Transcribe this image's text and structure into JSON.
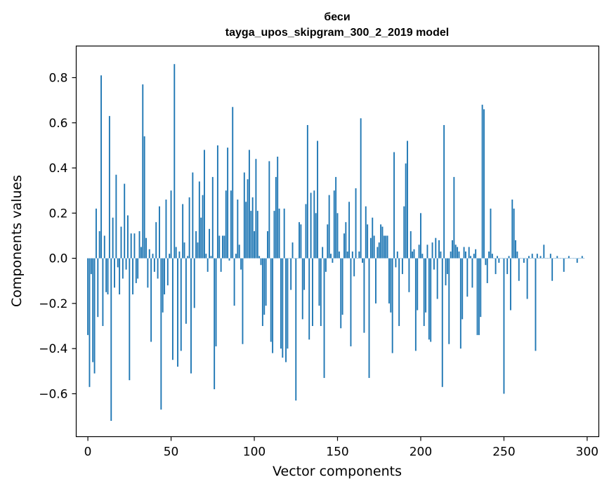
{
  "colors": {
    "bar": "#1f77b4",
    "axis": "#000000",
    "background": "#ffffff"
  },
  "chart_data": {
    "type": "bar",
    "title": "беси",
    "subtitle": "tayga_upos_skipgram_300_2_2019 model",
    "xlabel": "Vector components",
    "ylabel": "Components values",
    "xlim": [
      -7,
      307
    ],
    "ylim": [
      -0.79,
      0.94
    ],
    "xticks": [
      0,
      50,
      100,
      150,
      200,
      250,
      300
    ],
    "yticks": [
      -0.6,
      -0.4,
      -0.2,
      0.0,
      0.2,
      0.4,
      0.6,
      0.8
    ],
    "ytick_labels": [
      "−0.6",
      "−0.4",
      "−0.2",
      "0.0",
      "0.2",
      "0.4",
      "0.6",
      "0.8"
    ],
    "grid": false,
    "values": [
      -0.34,
      -0.57,
      -0.07,
      -0.46,
      -0.51,
      0.22,
      -0.26,
      0.12,
      0.81,
      -0.3,
      0.1,
      -0.15,
      -0.16,
      0.63,
      -0.72,
      0.18,
      -0.13,
      0.37,
      -0.04,
      -0.16,
      0.14,
      -0.09,
      0.33,
      -0.05,
      0.19,
      -0.54,
      0.11,
      -0.16,
      0.11,
      -0.11,
      -0.09,
      0.12,
      0.05,
      0.77,
      0.54,
      0.09,
      -0.13,
      0.04,
      -0.37,
      0.02,
      -0.06,
      0.16,
      -0.09,
      0.23,
      -0.67,
      -0.24,
      -0.16,
      0.26,
      -0.12,
      0.02,
      0.3,
      -0.45,
      0.86,
      0.05,
      -0.48,
      0.03,
      -0.41,
      0.24,
      0.07,
      -0.29,
      0.01,
      0.27,
      -0.51,
      0.38,
      -0.22,
      0.12,
      0.07,
      0.34,
      0.18,
      0.28,
      0.48,
      0.02,
      -0.06,
      0.13,
      0.01,
      0.36,
      -0.58,
      -0.39,
      0.5,
      0.1,
      -0.06,
      0.1,
      0.1,
      0.3,
      0.49,
      -0.01,
      0.3,
      0.67,
      -0.21,
      0.02,
      0.26,
      0.06,
      -0.05,
      -0.38,
      0.38,
      0.25,
      0.35,
      0.48,
      0.21,
      0.27,
      0.12,
      0.44,
      0.21,
      0.01,
      -0.03,
      -0.3,
      -0.25,
      -0.21,
      0.12,
      0.43,
      -0.37,
      -0.42,
      0.21,
      0.36,
      0.45,
      0.22,
      -0.4,
      -0.44,
      0.22,
      -0.46,
      -0.4,
      0.0,
      -0.14,
      0.07,
      0.0,
      -0.63,
      0.0,
      0.16,
      0.15,
      -0.27,
      -0.14,
      0.24,
      0.59,
      -0.36,
      0.29,
      -0.3,
      0.3,
      0.2,
      0.52,
      -0.21,
      -0.3,
      0.05,
      -0.53,
      -0.06,
      0.15,
      0.28,
      0.02,
      -0.02,
      0.3,
      0.36,
      0.2,
      0.03,
      -0.31,
      -0.25,
      0.11,
      0.16,
      0.03,
      0.25,
      -0.39,
      0.03,
      -0.08,
      0.31,
      0.0,
      0.03,
      0.62,
      -0.02,
      -0.33,
      0.23,
      0.15,
      -0.53,
      0.09,
      0.18,
      0.1,
      -0.2,
      0.05,
      0.07,
      0.15,
      0.14,
      0.1,
      0.1,
      0.1,
      -0.2,
      -0.24,
      -0.42,
      0.47,
      -0.04,
      0.03,
      -0.3,
      0.0,
      -0.07,
      0.23,
      0.42,
      0.52,
      -0.15,
      0.12,
      0.03,
      0.04,
      -0.41,
      -0.23,
      0.06,
      0.2,
      0.02,
      -0.3,
      -0.24,
      0.06,
      -0.36,
      -0.37,
      0.07,
      -0.05,
      0.09,
      -0.18,
      0.08,
      0.03,
      -0.57,
      0.59,
      -0.12,
      -0.07,
      -0.38,
      0.03,
      0.08,
      0.36,
      0.06,
      0.05,
      0.03,
      -0.4,
      -0.27,
      0.05,
      0.03,
      -0.17,
      0.05,
      0.01,
      -0.13,
      0.02,
      0.04,
      -0.34,
      -0.34,
      -0.26,
      0.68,
      0.66,
      -0.03,
      -0.11,
      0.03,
      0.22,
      0.02,
      0.0,
      -0.07,
      0.01,
      -0.02,
      0.0,
      0.0,
      -0.6,
      0.0,
      -0.07,
      0.01,
      -0.23,
      0.26,
      0.22,
      0.08,
      0.03,
      -0.1,
      0.0,
      0.0,
      -0.02,
      0.0,
      -0.18,
      0.01,
      0.0,
      0.02,
      0.0,
      -0.41,
      0.02,
      0.0,
      0.01,
      0.0,
      0.06,
      0.0,
      0.0,
      0.0,
      0.02,
      -0.1,
      0.0,
      0.0,
      0.01,
      0.0,
      0.0,
      0.0,
      -0.06,
      0.0,
      0.0,
      0.01,
      0.0,
      0.0,
      0.0,
      0.0,
      -0.02,
      0.0,
      0.0,
      0.01,
      0.0
    ]
  }
}
